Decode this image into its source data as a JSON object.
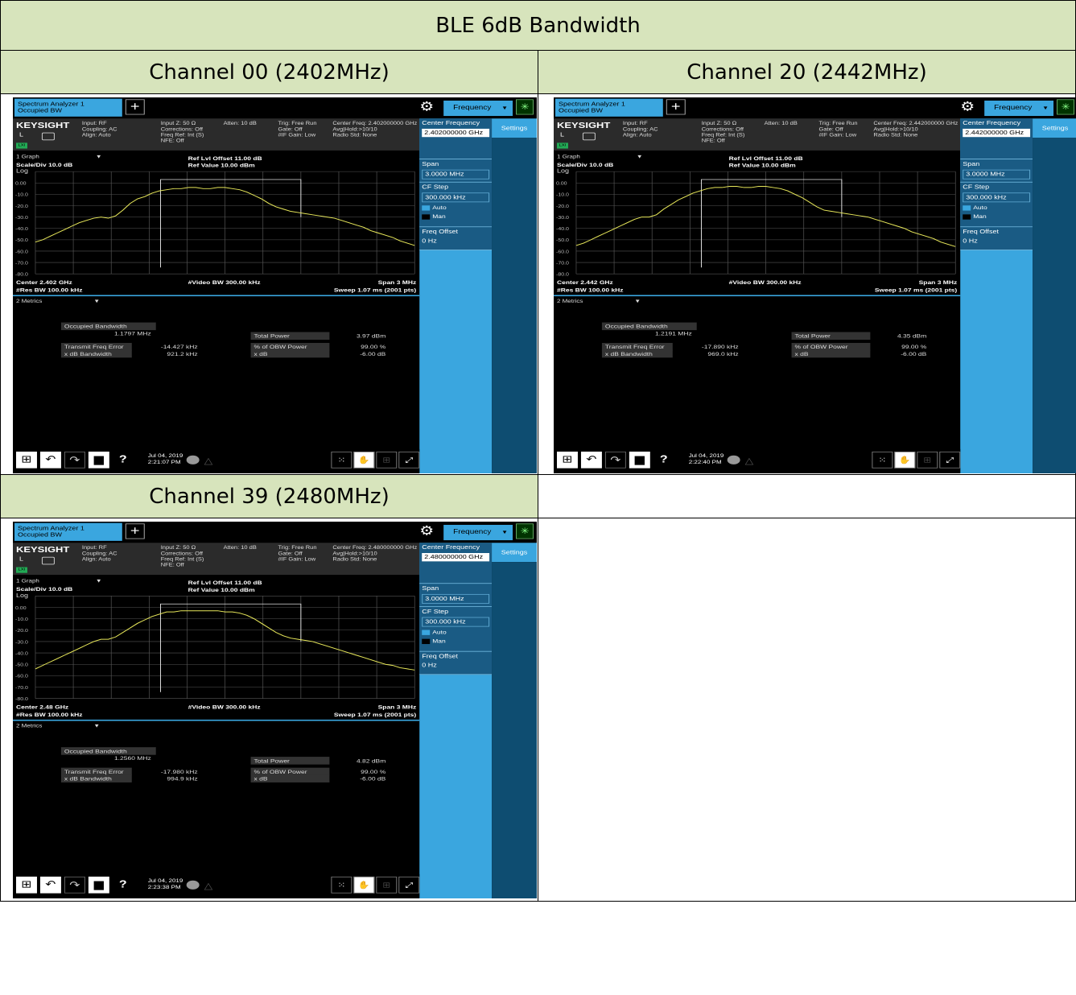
{
  "title": "BLE 6dB Bandwidth",
  "panels": [
    {
      "header": "Channel 00 (2402MHz)",
      "app_tab": "Spectrum Analyzer 1\nOccupied BW",
      "freq_menu": "Frequency",
      "logo": "KEYSIGHT",
      "info": {
        "col1": "Input: RF\nCoupling: AC\nAlign: Auto",
        "col2": "Input Z: 50 Ω\nCorrections: Off\nFreq Ref: Int (S)\nNFE: Off",
        "col3": "Atten: 10 dB",
        "col4": "Trig: Free Run\nGate: Off\n#IF Gain: Low",
        "col5": "Center Freq: 2.402000000 GHz\nAvg|Hold:>10/10\nRadio Std: None"
      },
      "side": {
        "center_label": "Center Frequency",
        "center_val": "2.402000000 GHz",
        "span_label": "Span",
        "span_val": "3.0000 MHz",
        "cf_label": "CF Step",
        "cf_val": "300.000 kHz",
        "auto": "Auto",
        "man": "Man",
        "offset_label": "Freq Offset",
        "offset_val": "0 Hz",
        "settings": "Settings"
      },
      "graph": {
        "graph_dd": "1 Graph",
        "scale": "Scale/Div 10.0 dB",
        "log": "Log",
        "ref_offset": "Ref Lvl Offset 11.00 dB",
        "ref_value": "Ref Value 10.00 dBm",
        "y_ticks": [
          "0.00",
          "-10.0",
          "-20.0",
          "-30.0",
          "-40.0",
          "-50.0",
          "-60.0",
          "-70.0",
          "-80.0"
        ],
        "center": "Center 2.402 GHz",
        "res_bw": "#Res BW 100.00 kHz",
        "video_bw": "#Video BW 300.00 kHz",
        "span": "Span 3 MHz",
        "sweep": "Sweep 1.07 ms (2001 pts)"
      },
      "metrics": {
        "metrics_dd": "2 Metrics",
        "obw_label": "Occupied Bandwidth",
        "obw_val": "1.1797 MHz",
        "tfe_label": "Transmit Freq Error",
        "tfe_val": "-14.427 kHz",
        "xdb_label": "x dB Bandwidth",
        "xdb_val": "921.2 kHz",
        "tp_label": "Total Power",
        "tp_val": "3.97 dBm",
        "pct_label": "% of OBW Power",
        "pct_val": "99.00 %",
        "xd_label": "x dB",
        "xd_val": "-6.00 dB"
      },
      "datetime": "Jul 04, 2019\n2:21:07 PM",
      "trace": [
        -52,
        -50,
        -47,
        -44,
        -41,
        -38,
        -35,
        -33,
        -31,
        -30,
        -31,
        -29,
        -24,
        -18,
        -14,
        -12,
        -9,
        -7,
        -6,
        -5,
        -5,
        -4,
        -4,
        -5,
        -5,
        -4,
        -4,
        -5,
        -6,
        -8,
        -11,
        -14,
        -18,
        -21,
        -23,
        -25,
        -26,
        -27,
        -28,
        -29,
        -30,
        -31,
        -33,
        -35,
        -37,
        -39,
        -42,
        -44,
        -46,
        -48,
        -51,
        -53,
        -55
      ]
    },
    {
      "header": "Channel 20 (2442MHz)",
      "app_tab": "Spectrum Analyzer 1\nOccupied BW",
      "freq_menu": "Frequency",
      "logo": "KEYSIGHT",
      "info": {
        "col1": "Input: RF\nCoupling: AC\nAlign: Auto",
        "col2": "Input Z: 50 Ω\nCorrections: Off\nFreq Ref: Int (S)\nNFE: Off",
        "col3": "Atten: 10 dB",
        "col4": "Trig: Free Run\nGate: Off\n#IF Gain: Low",
        "col5": "Center Freq: 2.442000000 GHz\nAvg|Hold:>10/10\nRadio Std: None"
      },
      "side": {
        "center_label": "Center Frequency",
        "center_val": "2.442000000 GHz",
        "span_label": "Span",
        "span_val": "3.0000 MHz",
        "cf_label": "CF Step",
        "cf_val": "300.000 kHz",
        "auto": "Auto",
        "man": "Man",
        "offset_label": "Freq Offset",
        "offset_val": "0 Hz",
        "settings": "Settings"
      },
      "graph": {
        "graph_dd": "1 Graph",
        "scale": "Scale/Div 10.0 dB",
        "log": "Log",
        "ref_offset": "Ref Lvl Offset 11.00 dB",
        "ref_value": "Ref Value 10.00 dBm",
        "y_ticks": [
          "0.00",
          "-10.0",
          "-20.0",
          "-30.0",
          "-40.0",
          "-50.0",
          "-60.0",
          "-70.0",
          "-80.0"
        ],
        "center": "Center 2.442 GHz",
        "res_bw": "#Res BW 100.00 kHz",
        "video_bw": "#Video BW 300.00 kHz",
        "span": "Span 3 MHz",
        "sweep": "Sweep 1.07 ms (2001 pts)"
      },
      "metrics": {
        "metrics_dd": "2 Metrics",
        "obw_label": "Occupied Bandwidth",
        "obw_val": "1.2191 MHz",
        "tfe_label": "Transmit Freq Error",
        "tfe_val": "-17.890 kHz",
        "xdb_label": "x dB Bandwidth",
        "xdb_val": "969.0 kHz",
        "tp_label": "Total Power",
        "tp_val": "4.35 dBm",
        "pct_label": "% of OBW Power",
        "pct_val": "99.00 %",
        "xd_label": "x dB",
        "xd_val": "-6.00 dB"
      },
      "datetime": "Jul 04, 2019\n2:22:40 PM",
      "trace": [
        -55,
        -53,
        -50,
        -47,
        -44,
        -41,
        -38,
        -35,
        -32,
        -30,
        -30,
        -28,
        -23,
        -19,
        -15,
        -12,
        -9,
        -7,
        -5,
        -4,
        -4,
        -3,
        -3,
        -4,
        -4,
        -3,
        -3,
        -4,
        -5,
        -7,
        -10,
        -13,
        -17,
        -21,
        -24,
        -25,
        -26,
        -27,
        -28,
        -29,
        -30,
        -32,
        -34,
        -36,
        -38,
        -40,
        -43,
        -45,
        -47,
        -49,
        -52,
        -54,
        -56
      ]
    },
    {
      "header": "Channel 39 (2480MHz)",
      "app_tab": "Spectrum Analyzer 1\nOccupied BW",
      "freq_menu": "Frequency",
      "logo": "KEYSIGHT",
      "info": {
        "col1": "Input: RF\nCoupling: AC\nAlign: Auto",
        "col2": "Input Z: 50 Ω\nCorrections: Off\nFreq Ref: Int (S)\nNFE: Off",
        "col3": "Atten: 10 dB",
        "col4": "Trig: Free Run\nGate: Off\n#IF Gain: Low",
        "col5": "Center Freq: 2.480000000 GHz\nAvg|Hold:>10/10\nRadio Std: None"
      },
      "side": {
        "center_label": "Center Frequency",
        "center_val": "2.480000000 GHz",
        "span_label": "Span",
        "span_val": "3.0000 MHz",
        "cf_label": "CF Step",
        "cf_val": "300.000 kHz",
        "auto": "Auto",
        "man": "Man",
        "offset_label": "Freq Offset",
        "offset_val": "0 Hz",
        "settings": "Settings"
      },
      "graph": {
        "graph_dd": "1 Graph",
        "scale": "Scale/Div 10.0 dB",
        "log": "Log",
        "ref_offset": "Ref Lvl Offset 11.00 dB",
        "ref_value": "Ref Value 10.00 dBm",
        "y_ticks": [
          "0.00",
          "-10.0",
          "-20.0",
          "-30.0",
          "-40.0",
          "-50.0",
          "-60.0",
          "-70.0",
          "-80.0"
        ],
        "center": "Center 2.48 GHz",
        "res_bw": "#Res BW 100.00 kHz",
        "video_bw": "#Video BW 300.00 kHz",
        "span": "Span 3 MHz",
        "sweep": "Sweep 1.07 ms (2001 pts)"
      },
      "metrics": {
        "metrics_dd": "2 Metrics",
        "obw_label": "Occupied Bandwidth",
        "obw_val": "1.2560 MHz",
        "tfe_label": "Transmit Freq Error",
        "tfe_val": "-17.980 kHz",
        "xdb_label": "x dB Bandwidth",
        "xdb_val": "994.9 kHz",
        "tp_label": "Total Power",
        "tp_val": "4.82 dBm",
        "pct_label": "% of OBW Power",
        "pct_val": "99.00 %",
        "xd_label": "x dB",
        "xd_val": "-6.00 dB"
      },
      "datetime": "Jul 04, 2019\n2:23:38 PM",
      "trace": [
        -54,
        -51,
        -48,
        -45,
        -42,
        -39,
        -36,
        -33,
        -30,
        -28,
        -28,
        -26,
        -22,
        -18,
        -14,
        -11,
        -8,
        -6,
        -4,
        -4,
        -3,
        -3,
        -3,
        -3,
        -3,
        -3,
        -4,
        -4,
        -5,
        -7,
        -10,
        -14,
        -18,
        -22,
        -25,
        -27,
        -28,
        -29,
        -30,
        -32,
        -34,
        -36,
        -38,
        -40,
        -42,
        -44,
        -46,
        -48,
        -50,
        -51,
        -53,
        -54,
        -55
      ]
    }
  ],
  "colors": {
    "header_bg": "#d7e4bc",
    "accent": "#3aa6df",
    "trace": "#e8e85a"
  }
}
